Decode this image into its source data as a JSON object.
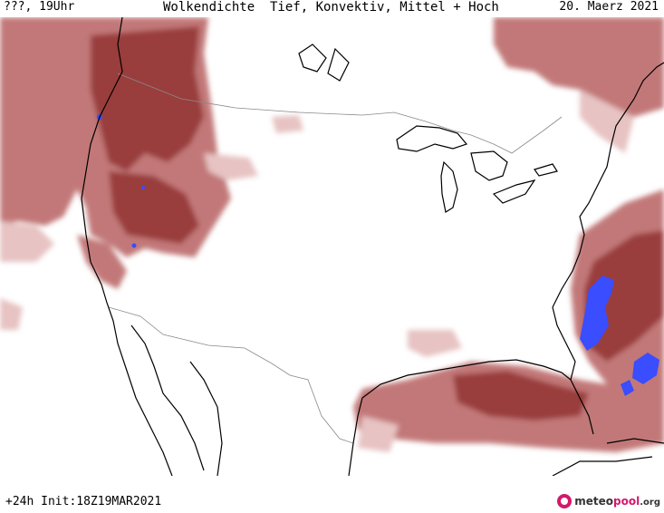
{
  "header": {
    "valid_time": "???, 19Uhr",
    "title": "Wolkendichte  Tief, Konvektiv, Mittel + Hoch",
    "date": "20. Maerz 2021"
  },
  "footer": {
    "forecast_info": "+24h Init:18Z19MAR2021",
    "logo_part1": "meteo",
    "logo_part2": "pool",
    "logo_part3": ".org"
  },
  "map": {
    "region": "North America",
    "colors": {
      "cloud_light": "#e7c3c3",
      "cloud_mid": "#c27878",
      "cloud_dark": "#9a3d3d",
      "cloud_very_dark": "#7a2525",
      "convective": "#3a4dff",
      "coastline": "#000000",
      "border": "#8a8a8a"
    }
  }
}
